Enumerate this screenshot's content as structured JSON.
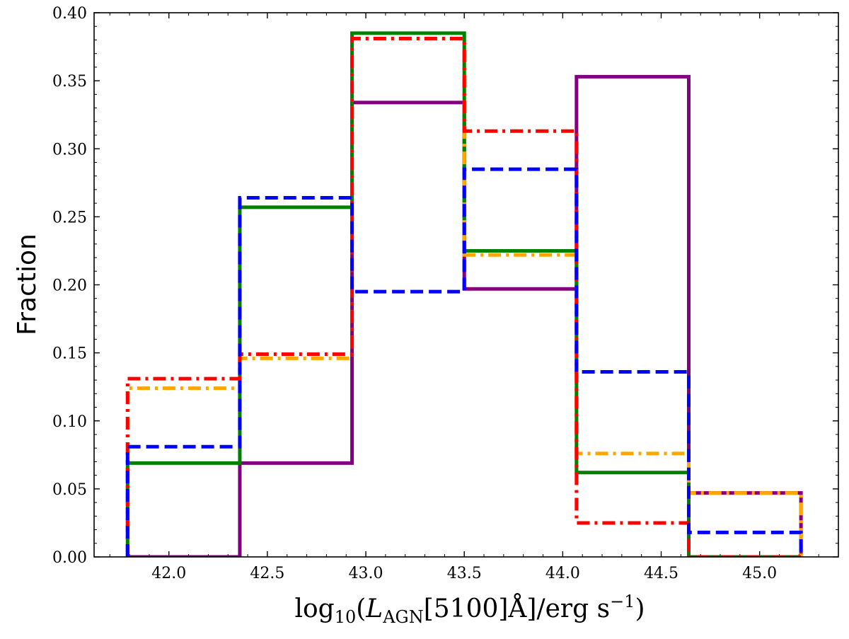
{
  "chart_data": {
    "type": "histogram",
    "ylabel": "Fraction",
    "xlabel": {
      "lead": "log",
      "lead_sub": "10",
      "open": "(",
      "L": "L",
      "L_sub": "AGN",
      "bracket": "[5100]Å]/erg s",
      "sup": "−1",
      "close": ")"
    },
    "xlim": [
      41.62,
      45.4
    ],
    "ylim": [
      0.0,
      0.4
    ],
    "x_ticks": [
      42.0,
      42.5,
      43.0,
      43.5,
      44.0,
      44.5,
      45.0
    ],
    "x_tick_labels": [
      "42.0",
      "42.5",
      "43.0",
      "43.5",
      "44.0",
      "44.5",
      "45.0"
    ],
    "y_ticks": [
      0.0,
      0.05,
      0.1,
      0.15,
      0.2,
      0.25,
      0.3,
      0.35,
      0.4
    ],
    "y_tick_labels": [
      "0.00",
      "0.05",
      "0.10",
      "0.15",
      "0.20",
      "0.25",
      "0.30",
      "0.35",
      "0.40"
    ],
    "bin_edges": [
      41.79,
      42.36,
      42.93,
      43.5,
      44.07,
      44.64,
      45.21
    ],
    "series": [
      {
        "color": "#800080",
        "linestyle": "solid",
        "values": [
          0.0,
          0.069,
          0.334,
          0.197,
          0.353,
          0.047
        ]
      },
      {
        "color": "#008000",
        "linestyle": "solid",
        "values": [
          0.069,
          0.257,
          0.385,
          0.225,
          0.062,
          0.0
        ]
      },
      {
        "color": "#FFA500",
        "linestyle": "dashdot",
        "values": [
          0.124,
          0.146,
          0.381,
          0.222,
          0.076,
          0.047
        ]
      },
      {
        "color": "#FF0000",
        "linestyle": "dashdot",
        "values": [
          0.131,
          0.149,
          0.381,
          0.313,
          0.025,
          0.0
        ]
      },
      {
        "color": "#0000FF",
        "linestyle": "dashed",
        "values": [
          0.081,
          0.264,
          0.195,
          0.285,
          0.136,
          0.018
        ]
      }
    ]
  }
}
